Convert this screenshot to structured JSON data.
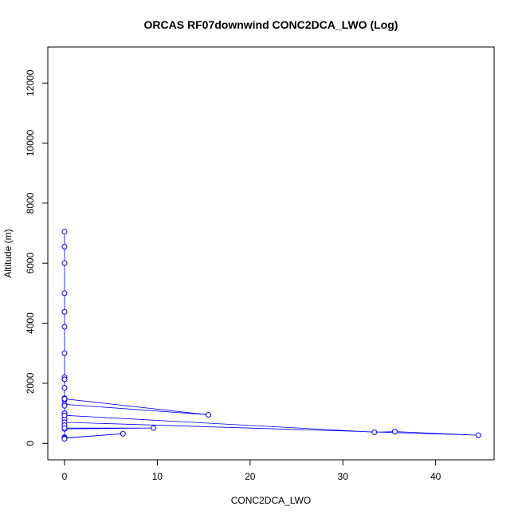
{
  "chart_data": {
    "type": "line",
    "title": "ORCAS RF07downwind CONC2DCA_LWO (Log)",
    "xlabel": "CONC2DCA_LWO",
    "ylabel": "Altitude (m)",
    "xlim": [
      -1.8,
      46.3
    ],
    "ylim": [
      -550,
      13200
    ],
    "xticks": [
      0,
      10,
      20,
      30,
      40
    ],
    "yticks": [
      0,
      2000,
      4000,
      6000,
      8000,
      10000,
      12000
    ],
    "grid": false,
    "legend": "none",
    "colors": {
      "series": "#0000ff",
      "frame": "#000000"
    },
    "series": [
      {
        "x": [
          0,
          0,
          0,
          0,
          0,
          0,
          0,
          0,
          0,
          0,
          0,
          0,
          0,
          15.5,
          0,
          0,
          0,
          0,
          0,
          0,
          0,
          33.4,
          35.6,
          44.6,
          0,
          0,
          0,
          0,
          9.6,
          0,
          0,
          0,
          6.3,
          0,
          0
        ],
        "y": [
          7050,
          6550,
          6000,
          5000,
          4380,
          3880,
          3000,
          2200,
          2130,
          1850,
          1500,
          1450,
          1480,
          950,
          1300,
          1250,
          1000,
          950,
          800,
          1000,
          930,
          370,
          390,
          270,
          700,
          600,
          500,
          480,
          510,
          510,
          200,
          180,
          320,
          170,
          150
        ]
      }
    ]
  }
}
